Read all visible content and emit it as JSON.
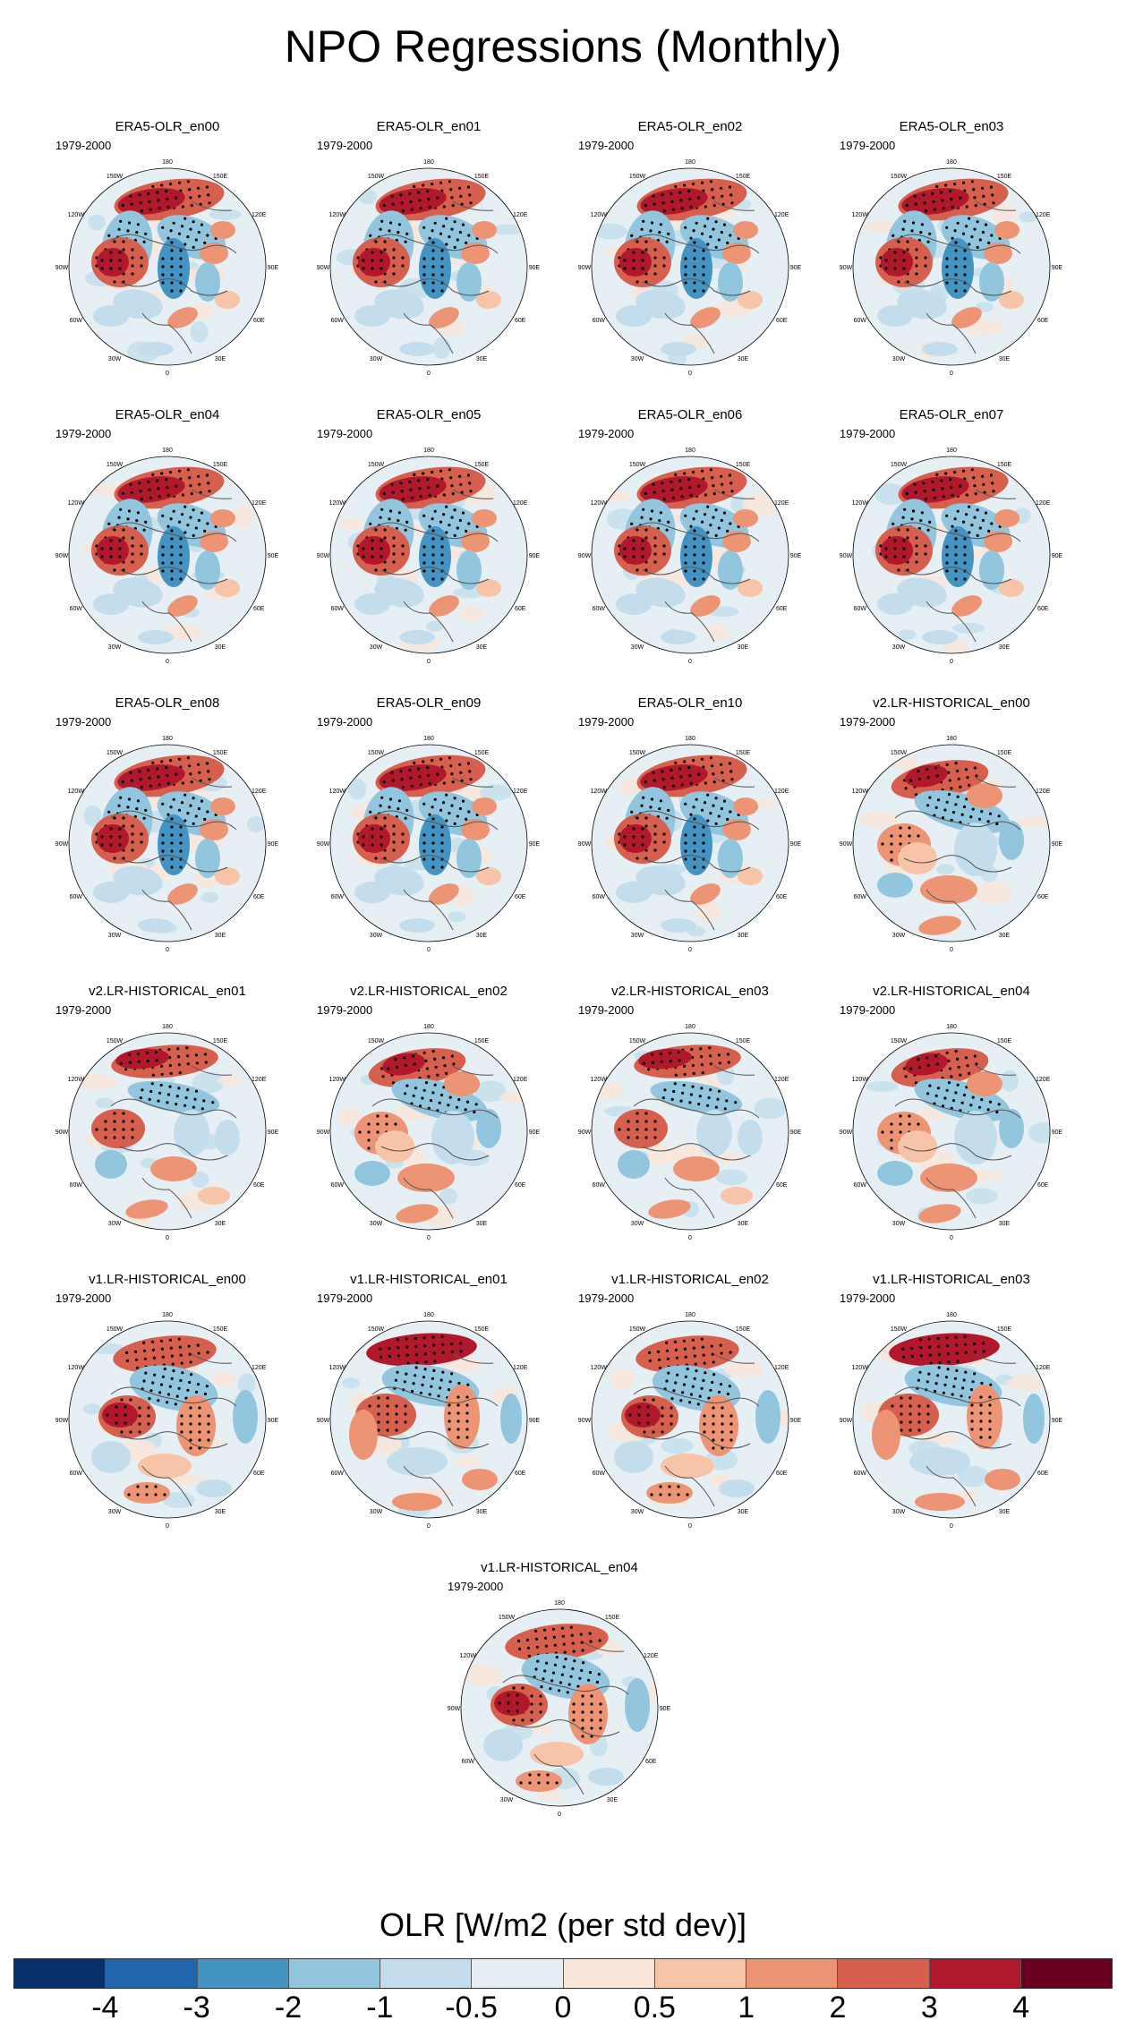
{
  "title": "NPO Regressions (Monthly)",
  "period": "1979-2000",
  "lon_labels": [
    "180",
    "150E",
    "120E",
    "90E",
    "60E",
    "30E",
    "0",
    "30W",
    "60W",
    "90W",
    "120W",
    "150W"
  ],
  "panels": [
    {
      "name": "ERA5-OLR_en00",
      "pattern": "era5"
    },
    {
      "name": "ERA5-OLR_en01",
      "pattern": "era5"
    },
    {
      "name": "ERA5-OLR_en02",
      "pattern": "era5"
    },
    {
      "name": "ERA5-OLR_en03",
      "pattern": "era5"
    },
    {
      "name": "ERA5-OLR_en04",
      "pattern": "era5"
    },
    {
      "name": "ERA5-OLR_en05",
      "pattern": "era5"
    },
    {
      "name": "ERA5-OLR_en06",
      "pattern": "era5"
    },
    {
      "name": "ERA5-OLR_en07",
      "pattern": "era5"
    },
    {
      "name": "ERA5-OLR_en08",
      "pattern": "era5"
    },
    {
      "name": "ERA5-OLR_en09",
      "pattern": "era5"
    },
    {
      "name": "ERA5-OLR_en10",
      "pattern": "era5"
    },
    {
      "name": "v2.LR-HISTORICAL_en00",
      "pattern": "v2a"
    },
    {
      "name": "v2.LR-HISTORICAL_en01",
      "pattern": "v2b"
    },
    {
      "name": "v2.LR-HISTORICAL_en02",
      "pattern": "v2a"
    },
    {
      "name": "v2.LR-HISTORICAL_en03",
      "pattern": "v2b"
    },
    {
      "name": "v2.LR-HISTORICAL_en04",
      "pattern": "v2a"
    },
    {
      "name": "v1.LR-HISTORICAL_en00",
      "pattern": "v1a"
    },
    {
      "name": "v1.LR-HISTORICAL_en01",
      "pattern": "v1b"
    },
    {
      "name": "v1.LR-HISTORICAL_en02",
      "pattern": "v1a"
    },
    {
      "name": "v1.LR-HISTORICAL_en03",
      "pattern": "v1b"
    },
    {
      "name": "v1.LR-HISTORICAL_en04",
      "pattern": "v1a"
    }
  ],
  "colorbar": {
    "title": "OLR [W/m2 (per std dev)]",
    "colors": [
      "#08306b",
      "#2166ac",
      "#4393c3",
      "#92c5de",
      "#c3ddec",
      "#e6eff4",
      "#fbe6da",
      "#f7c4a7",
      "#ec9474",
      "#d6604d",
      "#b2182b",
      "#67001f"
    ],
    "ticks": [
      "-4",
      "-3",
      "-2",
      "-1",
      "-0.5",
      "0",
      "0.5",
      "1",
      "2",
      "3",
      "4"
    ]
  }
}
